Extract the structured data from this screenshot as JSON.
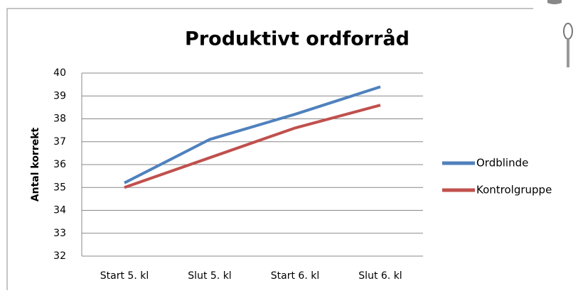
{
  "chart_data": {
    "type": "line",
    "title": "Produktivt ordforråd",
    "y_label": "Antal korrekt",
    "categories": [
      "Start 5. kl",
      "Slut 5. kl",
      "Start 6. kl",
      "Slut 6. kl"
    ],
    "series": [
      {
        "name": "Ordblinde",
        "color": "#4f81bd",
        "values": [
          35.2,
          37.1,
          38.2,
          39.4
        ]
      },
      {
        "name": "Kontrolgruppe",
        "color": "#c0504d",
        "values": [
          35.0,
          36.3,
          37.6,
          38.6
        ]
      }
    ],
    "ylim": [
      32,
      40
    ],
    "yticks": [
      32,
      33,
      34,
      35,
      36,
      37,
      38,
      39,
      40
    ],
    "grid": true,
    "legend": "right"
  }
}
